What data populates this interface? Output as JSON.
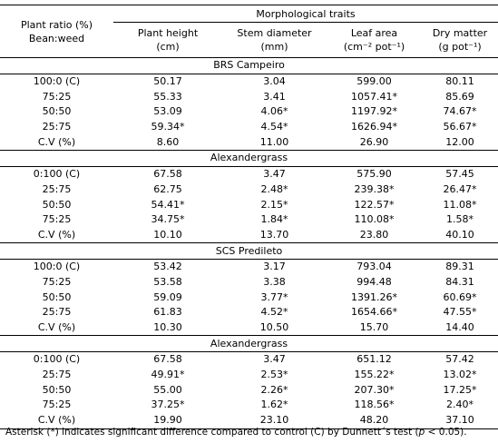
{
  "header": {
    "ratio_label": [
      "Plant ratio (%)",
      "Bean:weed"
    ],
    "group_label": "Morphological traits",
    "columns": [
      {
        "name": "Plant height",
        "unit": "(cm)"
      },
      {
        "name": "Stem diameter",
        "unit": "(mm)"
      },
      {
        "name": "Leaf area",
        "unit": "(cm⁻² pot⁻¹)"
      },
      {
        "name": "Dry matter",
        "unit": "(g pot⁻¹)"
      }
    ]
  },
  "groups": [
    {
      "title": "BRS Campeiro",
      "rows": [
        [
          "100:0 (C)",
          "50.17",
          "3.04",
          "599.00",
          "80.11"
        ],
        [
          "75:25",
          "55.33",
          "3.41",
          "1057.41*",
          "85.69"
        ],
        [
          "50:50",
          "53.09",
          "4.06*",
          "1197.92*",
          "74.67*"
        ],
        [
          "25:75",
          "59.34*",
          "4.54*",
          "1626.94*",
          "56.67*"
        ],
        [
          "C.V (%)",
          "8.60",
          "11.00",
          "26.90",
          "12.00"
        ]
      ]
    },
    {
      "title": "Alexandergrass",
      "rows": [
        [
          "0:100 (C)",
          "67.58",
          "3.47",
          "575.90",
          "57.45"
        ],
        [
          "25:75",
          "62.75",
          "2.48*",
          "239.38*",
          "26.47*"
        ],
        [
          "50:50",
          "54.41*",
          "2.15*",
          "122.57*",
          "11.08*"
        ],
        [
          "75:25",
          "34.75*",
          "1.84*",
          "110.08*",
          "1.58*"
        ],
        [
          "C.V (%)",
          "10.10",
          "13.70",
          "23.80",
          "40.10"
        ]
      ]
    },
    {
      "title": "SCS Predileto",
      "rows": [
        [
          "100:0 (C)",
          "53.42",
          "3.17",
          "793.04",
          "89.31"
        ],
        [
          "75:25",
          "53.58",
          "3.38",
          "994.48",
          "84.31"
        ],
        [
          "50:50",
          "59.09",
          "3.77*",
          "1391.26*",
          "60.69*"
        ],
        [
          "25:75",
          "61.83",
          "4.52*",
          "1654.66*",
          "47.55*"
        ],
        [
          "C.V (%)",
          "10.30",
          "10.50",
          "15.70",
          "14.40"
        ]
      ]
    },
    {
      "title": "Alexandergrass",
      "rows": [
        [
          "0:100 (C)",
          "67.58",
          "3.47",
          "651.12",
          "57.42"
        ],
        [
          "25:75",
          "49.91*",
          "2.53*",
          "155.22*",
          "13.02*"
        ],
        [
          "50:50",
          "55.00",
          "2.26*",
          "207.30*",
          "17.25*"
        ],
        [
          "75:25",
          "37.25*",
          "1.62*",
          "118.56*",
          "2.40*"
        ],
        [
          "C.V (%)",
          "19.90",
          "23.10",
          "48.20",
          "37.10"
        ]
      ]
    }
  ],
  "footnote": [
    "Asterisk (*) indicates significant difference compared to control (C) by Dunnett´s test (",
    "p",
    " < 0.05)."
  ]
}
